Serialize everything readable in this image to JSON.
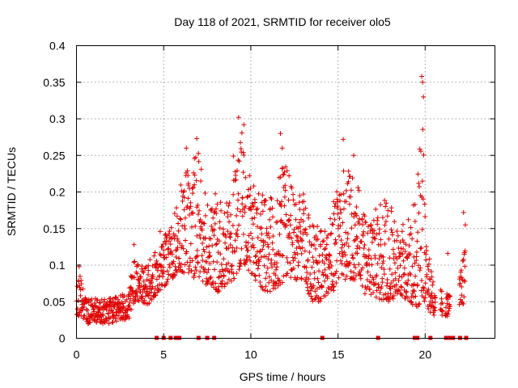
{
  "chart_data": {
    "type": "scatter",
    "title": "Day 118 of 2021, SRMTID for receiver olo5",
    "xlabel": "GPS time / hours",
    "ylabel": "SRMTID / TECUs",
    "xlim": [
      0,
      24
    ],
    "ylim": [
      0,
      0.4
    ],
    "x_ticks": [
      0,
      5,
      10,
      15,
      20
    ],
    "x_tick_labels": [
      "0",
      "5",
      "10",
      "15",
      "20"
    ],
    "y_ticks": [
      0,
      0.05,
      0.1,
      0.15,
      0.2,
      0.25,
      0.3,
      0.35,
      0.4
    ],
    "y_tick_labels": [
      "0",
      "0.05",
      "0.1",
      "0.15",
      "0.2",
      "0.25",
      "0.3",
      "0.35",
      "0.4"
    ],
    "grid": true,
    "marker": "+",
    "color": "#e00000",
    "series": [
      {
        "name": "SRMTID",
        "envelope": [
          [
            0.0,
            0.03,
            0.08
          ],
          [
            0.2,
            0.03,
            0.09
          ],
          [
            0.5,
            0.02,
            0.06
          ],
          [
            1.0,
            0.02,
            0.055
          ],
          [
            1.5,
            0.02,
            0.055
          ],
          [
            2.0,
            0.02,
            0.055
          ],
          [
            2.5,
            0.025,
            0.06
          ],
          [
            3.0,
            0.025,
            0.065
          ],
          [
            3.3,
            0.05,
            0.12
          ],
          [
            3.7,
            0.05,
            0.1
          ],
          [
            4.2,
            0.045,
            0.11
          ],
          [
            4.6,
            0.06,
            0.12
          ],
          [
            5.0,
            0.07,
            0.14
          ],
          [
            5.5,
            0.08,
            0.16
          ],
          [
            6.0,
            0.09,
            0.22
          ],
          [
            6.5,
            0.08,
            0.24
          ],
          [
            7.0,
            0.08,
            0.26
          ],
          [
            7.5,
            0.07,
            0.2
          ],
          [
            8.0,
            0.06,
            0.2
          ],
          [
            8.5,
            0.07,
            0.19
          ],
          [
            9.0,
            0.08,
            0.25
          ],
          [
            9.5,
            0.1,
            0.29
          ],
          [
            10.0,
            0.09,
            0.22
          ],
          [
            10.5,
            0.07,
            0.2
          ],
          [
            11.0,
            0.06,
            0.19
          ],
          [
            11.5,
            0.07,
            0.21
          ],
          [
            12.0,
            0.08,
            0.25
          ],
          [
            12.5,
            0.08,
            0.19
          ],
          [
            13.0,
            0.08,
            0.2
          ],
          [
            13.5,
            0.05,
            0.16
          ],
          [
            14.0,
            0.05,
            0.15
          ],
          [
            14.5,
            0.06,
            0.16
          ],
          [
            15.0,
            0.07,
            0.22
          ],
          [
            15.5,
            0.08,
            0.24
          ],
          [
            16.0,
            0.08,
            0.22
          ],
          [
            16.5,
            0.06,
            0.18
          ],
          [
            17.0,
            0.06,
            0.17
          ],
          [
            17.5,
            0.05,
            0.2
          ],
          [
            18.0,
            0.05,
            0.18
          ],
          [
            18.5,
            0.06,
            0.17
          ],
          [
            19.0,
            0.05,
            0.16
          ],
          [
            19.5,
            0.04,
            0.2
          ],
          [
            19.8,
            0.05,
            0.33
          ],
          [
            20.1,
            0.04,
            0.12
          ],
          [
            20.5,
            0.03,
            0.09
          ],
          [
            20.9,
            0.03,
            0.07
          ],
          [
            21.3,
            0.03,
            0.06
          ],
          [
            21.6,
            0.03,
            0.06
          ],
          [
            22.0,
            0.04,
            0.09
          ],
          [
            22.3,
            0.05,
            0.14
          ]
        ],
        "peaks": [
          [
            0.15,
            0.098
          ],
          [
            3.3,
            0.128
          ],
          [
            4.8,
            0.146
          ],
          [
            6.3,
            0.26
          ],
          [
            6.9,
            0.273
          ],
          [
            9.3,
            0.302
          ],
          [
            9.6,
            0.292
          ],
          [
            11.7,
            0.28
          ],
          [
            11.8,
            0.26
          ],
          [
            15.3,
            0.272
          ],
          [
            15.9,
            0.25
          ],
          [
            19.8,
            0.358
          ],
          [
            19.85,
            0.35
          ],
          [
            19.9,
            0.33
          ],
          [
            21.3,
            0.116
          ],
          [
            22.2,
            0.172
          ],
          [
            22.3,
            0.155
          ]
        ],
        "zero_hours": [
          4.6,
          5.0,
          5.4,
          5.7,
          5.9,
          7.0,
          7.5,
          7.9,
          14.1,
          17.3,
          19.4,
          19.55,
          20.3,
          21.2,
          21.35,
          21.5,
          21.6,
          22.0,
          22.35
        ]
      }
    ]
  }
}
